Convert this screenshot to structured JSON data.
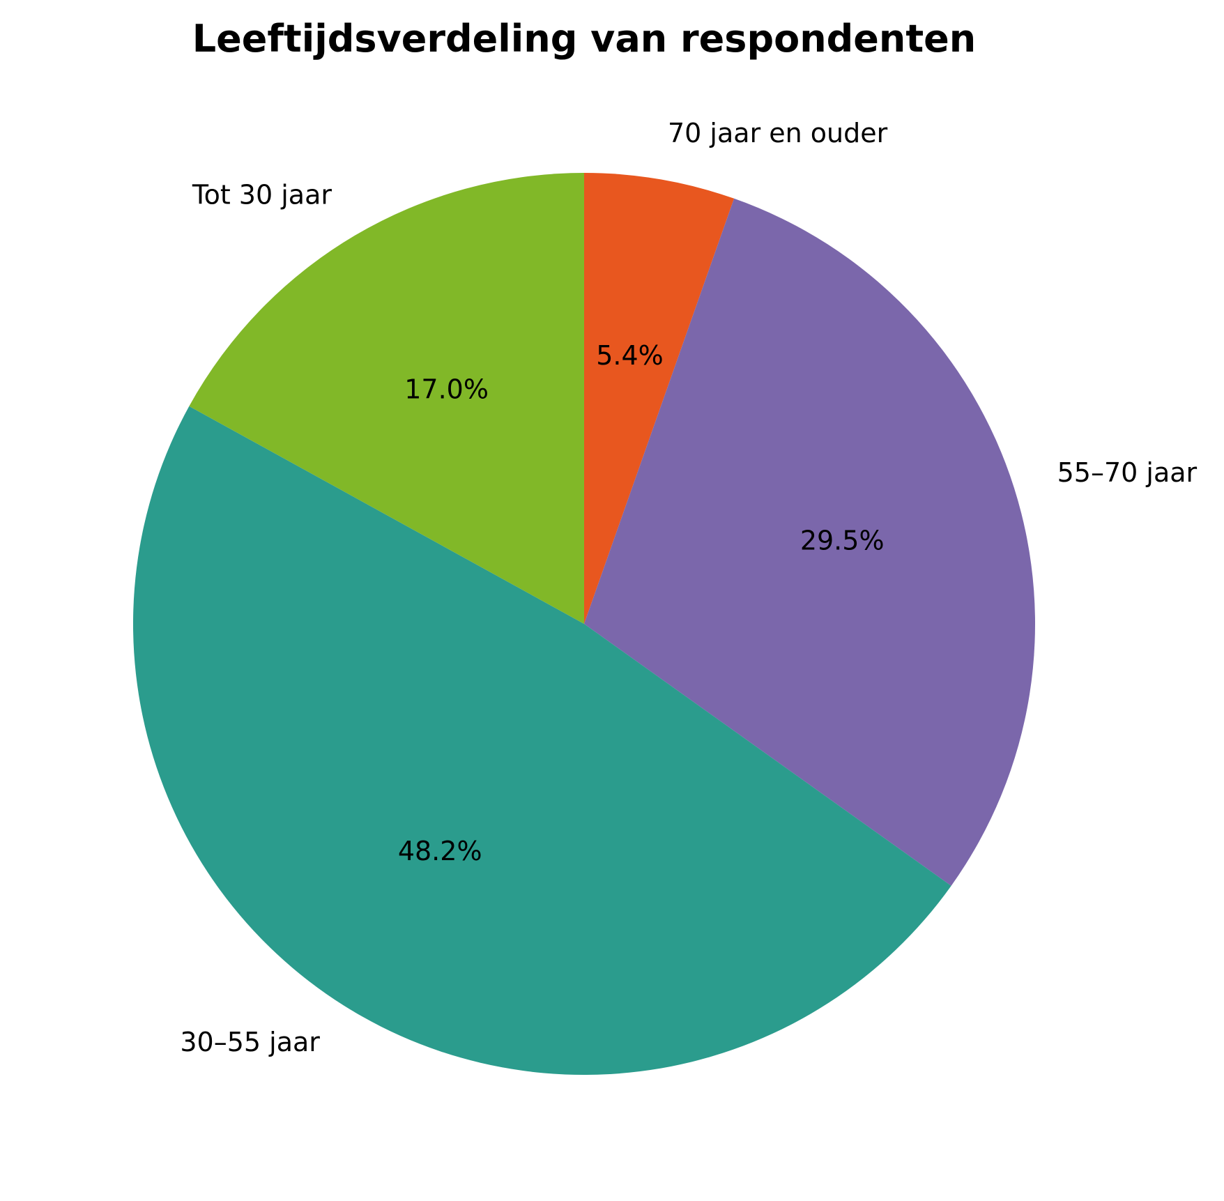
{
  "chart_data": {
    "type": "pie",
    "title": "Leeftijdsverdeling van respondenten",
    "slices": [
      {
        "label": "70 jaar en ouder",
        "value": 5.4,
        "pct_label": "5.4%",
        "color": "#e8571f"
      },
      {
        "label": "55–70 jaar",
        "value": 29.5,
        "pct_label": "29.5%",
        "color": "#7b67ab"
      },
      {
        "label": "30–55 jaar",
        "value": 48.2,
        "pct_label": "48.2%",
        "color": "#2b9c8d"
      },
      {
        "label": "Tot 30 jaar",
        "value": 17.0,
        "pct_label": "17.0%",
        "color": "#81b828"
      }
    ],
    "start_angle": "top",
    "direction": "clockwise"
  }
}
